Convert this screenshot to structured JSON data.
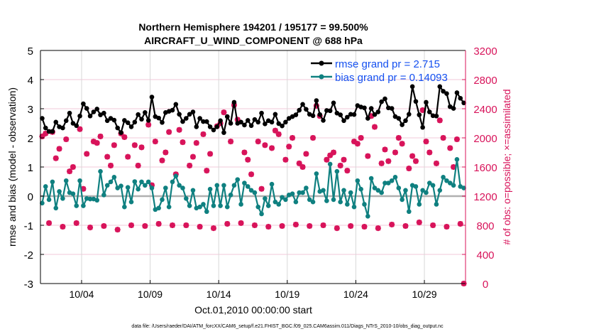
{
  "chart_data": {
    "type": "line",
    "title": [
      "Northern Hemisphere 194201 / 195177 = 99.500%",
      "AIRCRAFT_U_WIND_COMPONENT @ 688 hPa"
    ],
    "xlabel": "Oct.01,2010 00:00:00 start",
    "ylabel": "rmse and bias (model - observation)",
    "y2label": "# of obs: o=possible; ×=assimilated",
    "footer": "data file: /Users/raeder/DAI/ATM_forcXX/CAM6_setup/f.e21.FHIST_BGC.f09_025.CAM6assim.011/Diags_NTrS_2010-10/obs_diag_output.nc",
    "xlim_days": [
      0,
      31
    ],
    "ylim": [
      -3,
      5
    ],
    "y2lim": [
      0,
      3200
    ],
    "x_ticks": [
      {
        "day": 3,
        "label": "10/04"
      },
      {
        "day": 8,
        "label": "10/09"
      },
      {
        "day": 13,
        "label": "10/14"
      },
      {
        "day": 18,
        "label": "10/19"
      },
      {
        "day": 23,
        "label": "10/24"
      },
      {
        "day": 28,
        "label": "10/29"
      }
    ],
    "y_ticks": [
      "-3",
      "-2",
      "-1",
      "0",
      "1",
      "2",
      "3",
      "4",
      "5"
    ],
    "y2_ticks": [
      "0",
      "400",
      "800",
      "1200",
      "1600",
      "2000",
      "2400",
      "2800",
      "3200"
    ],
    "x_start_day": 0.125,
    "x_step_day": 0.25,
    "legend_position": "top-right",
    "colors": {
      "rmse": "#000000",
      "bias": "#0f8080",
      "obs": "#d8135a",
      "legend_text": "#1450f0",
      "grid_h": "#f2c8d8",
      "grid_v": "#d8d8d8",
      "zero": "#b0b0b0"
    },
    "series": [
      {
        "name": "rmse grand pr = 2.715",
        "key": "rmse",
        "values": [
          2.67,
          2.34,
          2.22,
          2.22,
          2.54,
          2.38,
          2.34,
          2.59,
          2.85,
          2.5,
          2.42,
          2.75,
          3.17,
          3.01,
          2.75,
          2.89,
          2.99,
          2.79,
          2.85,
          2.59,
          2.67,
          2.61,
          2.34,
          2.18,
          2.6,
          2.52,
          2.38,
          2.54,
          2.8,
          2.64,
          2.87,
          2.6,
          3.4,
          2.73,
          2.68,
          2.53,
          2.87,
          2.91,
          2.95,
          3.15,
          2.81,
          2.56,
          2.67,
          2.81,
          2.89,
          2.38,
          2.67,
          2.56,
          2.56,
          2.38,
          2.27,
          2.38,
          2.59,
          2.18,
          2.73,
          2.5,
          3.22,
          2.5,
          2.54,
          2.44,
          2.6,
          2.42,
          2.63,
          2.54,
          2.85,
          2.48,
          2.59,
          2.54,
          2.81,
          2.49,
          2.41,
          2.54,
          2.67,
          2.73,
          2.79,
          2.95,
          3.15,
          2.98,
          2.81,
          2.76,
          3.28,
          2.8,
          2.6,
          2.94,
          2.93,
          3.2,
          2.85,
          2.79,
          2.59,
          2.71,
          2.81,
          2.8,
          3.11,
          3.06,
          3.03,
          2.67,
          3.01,
          2.8,
          2.89,
          3.24,
          3.34,
          3.03,
          3.01,
          2.73,
          2.67,
          2.45,
          2.59,
          2.81,
          3.76,
          3.25,
          2.79,
          2.36,
          3.22,
          2.89,
          2.76,
          2.75,
          3.76,
          3.6,
          3.52,
          3.07,
          3.01,
          3.55,
          3.36,
          3.2
        ]
      },
      {
        "name": "bias grand pr = 0.14093",
        "key": "bias",
        "values": [
          -0.24,
          0.33,
          -0.12,
          0.49,
          -0.41,
          0.16,
          -0.08,
          0.53,
          0.12,
          0.08,
          -0.33,
          0.53,
          -0.33,
          -0.08,
          -0.1,
          -0.1,
          -0.14,
          0.85,
          0.04,
          0.37,
          0.49,
          0.65,
          0.28,
          0.35,
          -0.37,
          0.3,
          -0.2,
          0.5,
          0.24,
          0.49,
          0.37,
          0.49,
          0.28,
          -0.46,
          -0.41,
          -0.12,
          0.28,
          -0.37,
          0.49,
          0.69,
          0.37,
          0.28,
          -0.08,
          -0.33,
          0.2,
          -0.41,
          -0.37,
          -0.28,
          -0.53,
          0.24,
          -0.33,
          0.37,
          -0.33,
          0.37,
          -0.37,
          0.04,
          0.37,
          0.57,
          -0.28,
          0.45,
          0.33,
          0.2,
          0.12,
          -0.37,
          -0.61,
          -0.08,
          -0.33,
          0.41,
          -0.2,
          -0.28,
          -0.04,
          -0.12,
          0.04,
          0.08,
          -0.2,
          0.12,
          0.12,
          0.28,
          -0.12,
          -0.2,
          0.77,
          0.16,
          0.2,
          -0.16,
          1.1,
          -0.12,
          0.85,
          -0.2,
          0.2,
          -0.28,
          0.12,
          -0.37,
          0.53,
          0.24,
          -0.28,
          -0.69,
          0.61,
          0.28,
          0.2,
          0.12,
          0.45,
          0.45,
          0.53,
          0.65,
          0.28,
          -0.12,
          0.2,
          -0.53,
          0.37,
          0.33,
          -0.28,
          0.2,
          0.12,
          0.45,
          0.37,
          -0.28,
          0.2,
          0.65,
          0.53,
          0.45,
          0.37,
          1.26,
          0.33,
          0.28
        ]
      },
      {
        "name": "# of obs",
        "key": "obs",
        "axis": "right",
        "values": [
          2020,
          2060,
          830,
          2080,
          1720,
          1850,
          780,
          1980,
          1540,
          1600,
          830,
          2120,
          1300,
          1780,
          770,
          1950,
          1930,
          2020,
          790,
          1740,
          1620,
          1900,
          740,
          2060,
          2010,
          1740,
          800,
          1900,
          1620,
          1870,
          790,
          2180,
          1350,
          1950,
          820,
          1690,
          1800,
          2080,
          800,
          1500,
          2110,
          1940,
          800,
          1620,
          1740,
          1930,
          780,
          2050,
          1550,
          1780,
          760,
          2160,
          2200,
          2350,
          820,
          1950,
          2450,
          2250,
          830,
          1800,
          1700,
          1500,
          800,
          1950,
          1300,
          1900,
          780,
          1860,
          2100,
          2050,
          790,
          1700,
          1880,
          2000,
          810,
          1650,
          1600,
          1780,
          790,
          2000,
          2440,
          2300,
          800,
          1700,
          1760,
          1800,
          760,
          1620,
          1700,
          1550,
          790,
          1950,
          1920,
          2000,
          780,
          1750,
          2300,
          2150,
          760,
          1650,
          1840,
          1680,
          810,
          1800,
          2000,
          1920,
          790,
          1580,
          1750,
          1680,
          840,
          2380,
          1950,
          1800,
          800,
          1650,
          2240,
          2000,
          780,
          1860,
          1600,
          1980,
          820,
          0
        ]
      }
    ]
  }
}
